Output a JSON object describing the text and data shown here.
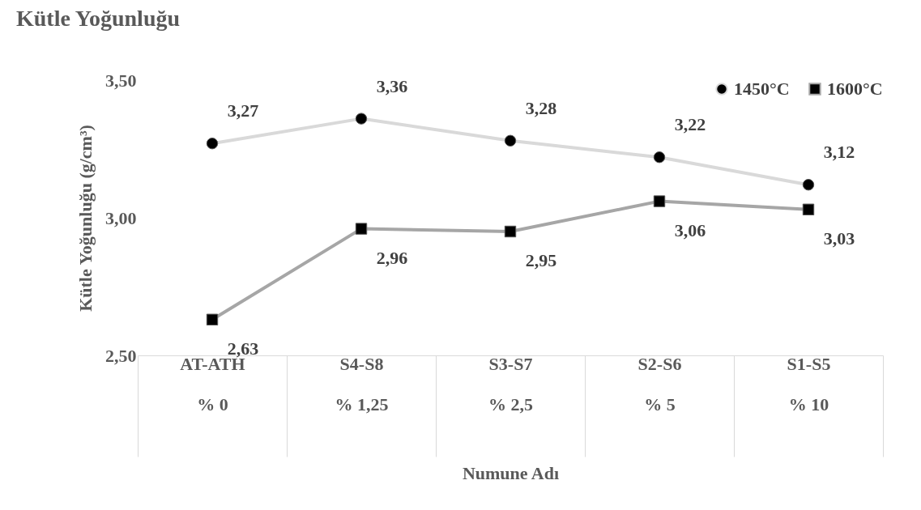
{
  "chart_data": {
    "type": "line",
    "title": "Kütle Yoğunluğu",
    "xlabel": "Numune Adı",
    "ylabel": "Kütle Yoğunluğu (g/cm³)",
    "categories": [
      "AT-ATH\n% 0",
      "S4-S8\n% 1,25",
      "S3-S7\n% 2,5",
      "S2-S6\n% 5",
      "S1-S5\n% 10"
    ],
    "series": [
      {
        "name": "1450°C",
        "color": "#d9d9d9",
        "marker": "circle",
        "values": [
          3.27,
          3.36,
          3.28,
          3.22,
          3.12
        ],
        "value_labels": [
          "3,27",
          "3,36",
          "3,28",
          "3,22",
          "3,12"
        ]
      },
      {
        "name": "1600°C",
        "color": "#a6a6a6",
        "marker": "square",
        "values": [
          2.63,
          2.96,
          2.95,
          3.06,
          3.03
        ],
        "value_labels": [
          "2,63",
          "2,96",
          "2,95",
          "3,06",
          "3,03"
        ]
      }
    ],
    "ylim": [
      2.5,
      3.5
    ],
    "yticks": [
      {
        "value": 2.5,
        "label": "2,50"
      },
      {
        "value": 3.0,
        "label": "3,00"
      },
      {
        "value": 3.5,
        "label": "3,50"
      }
    ],
    "grid": false,
    "legend": "top right"
  }
}
